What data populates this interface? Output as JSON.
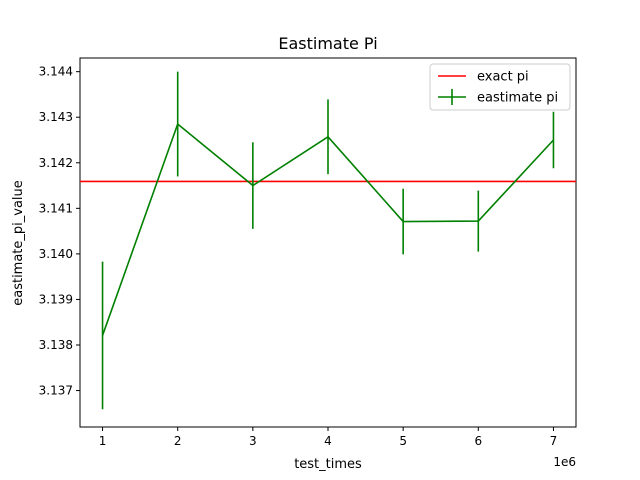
{
  "chart_data": {
    "type": "line",
    "title": "Eastimate Pi",
    "xlabel": "test_times",
    "ylabel": "eastimate_pi_value",
    "x_offset_label": "1e6",
    "x": [
      1,
      2,
      3,
      4,
      5,
      6,
      7
    ],
    "x_ticks": [
      1,
      2,
      3,
      4,
      5,
      6,
      7
    ],
    "y_ticks": [
      3.137,
      3.138,
      3.139,
      3.14,
      3.141,
      3.142,
      3.143,
      3.144
    ],
    "xlim": [
      0.7,
      7.3
    ],
    "ylim": [
      3.1362,
      3.1443
    ],
    "grid": false,
    "legend_position": "top-right",
    "series": [
      {
        "name": "exact pi",
        "kind": "hline",
        "value": 3.14159,
        "color": "#ff0000"
      },
      {
        "name": "eastimate pi",
        "kind": "errorbar",
        "color": "#008000",
        "values": [
          3.13821,
          3.14285,
          3.1415,
          3.14257,
          3.14071,
          3.14072,
          3.1425
        ],
        "errors": [
          0.00162,
          0.00115,
          0.00095,
          0.00082,
          0.00072,
          0.00067,
          0.00062
        ]
      }
    ]
  }
}
